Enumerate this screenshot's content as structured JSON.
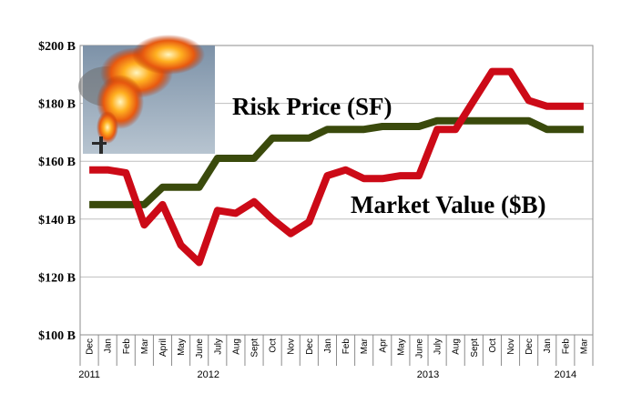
{
  "chart_data": {
    "type": "line",
    "categories": [
      "Dec",
      "Jan",
      "Feb",
      "Mar",
      "April",
      "May",
      "June",
      "July",
      "Aug",
      "Sept",
      "Oct",
      "Nov",
      "Dec",
      "Jan",
      "Feb",
      "Mar",
      "Apr",
      "May",
      "June",
      "July",
      "Aug",
      "Sept",
      "Oct",
      "Nov",
      "Dec",
      "Jan",
      "Feb",
      "Mar"
    ],
    "years": [
      {
        "label": "2011",
        "start": 0,
        "end": 0
      },
      {
        "label": "2012",
        "start": 1,
        "end": 12
      },
      {
        "label": "2013",
        "start": 13,
        "end": 24
      },
      {
        "label": "2014",
        "start": 25,
        "end": 27
      }
    ],
    "series": [
      {
        "name": "Risk Price (SF)",
        "color": "#3a4a0c",
        "values": [
          145,
          145,
          145,
          145,
          151,
          151,
          151,
          161,
          161,
          161,
          168,
          168,
          168,
          171,
          171,
          171,
          172,
          172,
          172,
          174,
          174,
          174,
          174,
          174,
          174,
          171,
          171,
          171
        ]
      },
      {
        "name": "Market Value ($B)",
        "color": "#cc0a17",
        "values": [
          157,
          157,
          156,
          138,
          145,
          131,
          125,
          143,
          142,
          146,
          140,
          135,
          139,
          155,
          157,
          154,
          154,
          155,
          155,
          171,
          171,
          181,
          191,
          191,
          181,
          179,
          179,
          179
        ]
      }
    ],
    "yticks": [
      "$100 B",
      "$120 B",
      "$140 B",
      "$160 B",
      "$180 B",
      "$200 B"
    ],
    "ylim": [
      100,
      200
    ],
    "grid": true,
    "image": "flare-photo"
  }
}
